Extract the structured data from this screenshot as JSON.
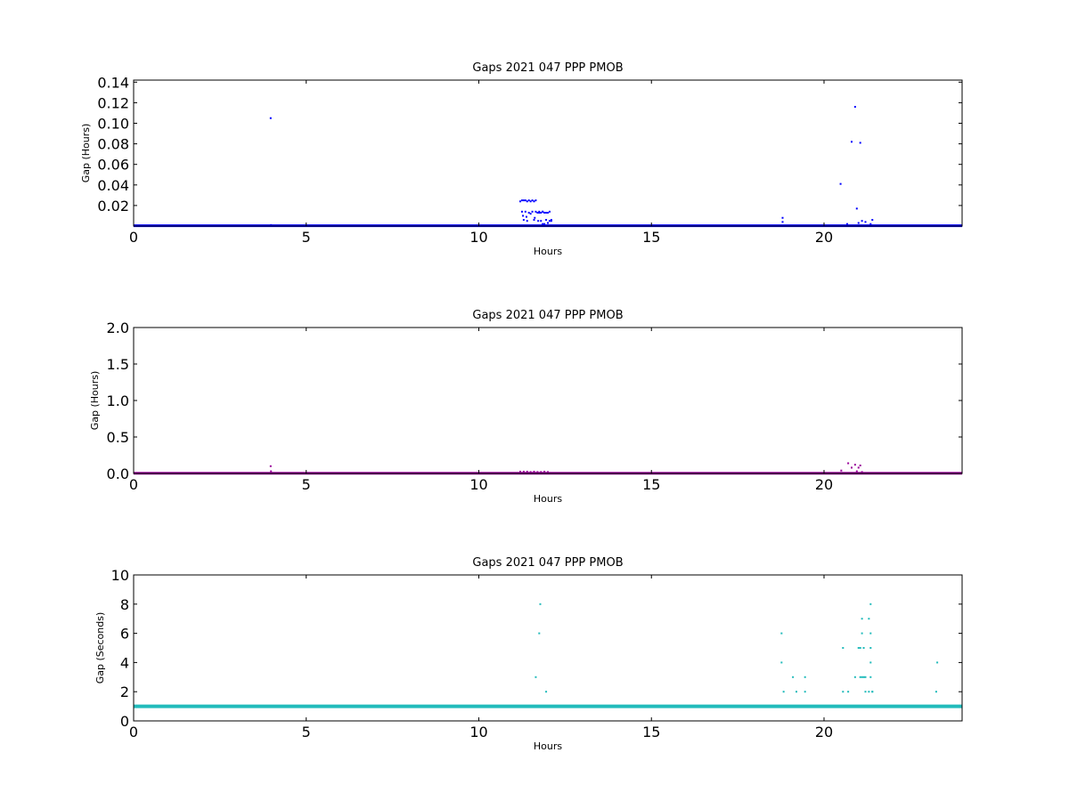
{
  "chart_data": [
    {
      "type": "scatter",
      "title": "Gaps 2021 047 PPP  PMOB",
      "xlabel": "Hours",
      "ylabel": "Gap (Hours)",
      "xlim": [
        0,
        24
      ],
      "ylim": [
        0,
        0.142
      ],
      "xticks": [
        "0",
        "5",
        "10",
        "15",
        "20"
      ],
      "xtick_values": [
        0,
        5,
        10,
        15,
        20
      ],
      "yticks": [
        "0.02",
        "0.04",
        "0.06",
        "0.08",
        "0.10",
        "0.12",
        "0.14"
      ],
      "ytick_values": [
        0.02,
        0.04,
        0.06,
        0.08,
        0.1,
        0.12,
        0.14
      ],
      "color": "#0000ff",
      "baseline": {
        "y": 0.0003,
        "x_range": [
          0,
          24
        ]
      },
      "series": [
        {
          "x": [
            3.97,
            3.98,
            11.2,
            11.25,
            11.3,
            11.35,
            11.4,
            11.45,
            11.5,
            11.55,
            11.6,
            11.65,
            11.7,
            11.75,
            11.8,
            11.85,
            11.9,
            11.95,
            12.0,
            12.05,
            12.1,
            11.25,
            11.35,
            11.45,
            11.55,
            11.65,
            11.75,
            11.85,
            11.95,
            12.05,
            11.3,
            11.4,
            11.6,
            11.8,
            11.9,
            12.0,
            12.1,
            11.28,
            11.38,
            11.5,
            11.62,
            11.72,
            11.85,
            18.8,
            18.8,
            20.48,
            20.67,
            20.8,
            20.9,
            21.05,
            20.95,
            21.1,
            21.2,
            21.35,
            21.4,
            21.0
          ],
          "y": [
            0.105,
            0.001,
            0.024,
            0.025,
            0.025,
            0.025,
            0.024,
            0.025,
            0.024,
            0.025,
            0.024,
            0.025,
            0.013,
            0.014,
            0.013,
            0.014,
            0.013,
            0.013,
            0.013,
            0.014,
            0.006,
            0.014,
            0.014,
            0.013,
            0.014,
            0.014,
            0.013,
            0.014,
            0.006,
            0.005,
            0.006,
            0.005,
            0.006,
            0.005,
            0.002,
            0.003,
            0.005,
            0.01,
            0.009,
            0.012,
            0.008,
            0.005,
            0.002,
            0.008,
            0.004,
            0.041,
            0.002,
            0.082,
            0.116,
            0.081,
            0.017,
            0.005,
            0.004,
            0.002,
            0.006,
            0.003
          ]
        }
      ]
    },
    {
      "type": "scatter",
      "title": "Gaps 2021 047 PPP  PMOB",
      "xlabel": "Hours",
      "ylabel": "Gap (Hours)",
      "xlim": [
        0,
        24
      ],
      "ylim": [
        0,
        2.0
      ],
      "xticks": [
        "0",
        "5",
        "10",
        "15",
        "20"
      ],
      "xtick_values": [
        0,
        5,
        10,
        15,
        20
      ],
      "yticks": [
        "0.0",
        "0.5",
        "1.0",
        "1.5",
        "2.0"
      ],
      "ytick_values": [
        0,
        0.5,
        1.0,
        1.5,
        2.0
      ],
      "color": "#990099",
      "baseline": {
        "y": 0.003,
        "x_range": [
          0,
          24
        ]
      },
      "series": [
        {
          "x": [
            3.97,
            3.98,
            11.2,
            11.3,
            11.4,
            11.5,
            11.6,
            11.7,
            11.8,
            11.9,
            12.0,
            20.5,
            20.7,
            20.8,
            20.9,
            21.0,
            21.1,
            21.05,
            20.95
          ],
          "y": [
            0.1,
            0.03,
            0.025,
            0.025,
            0.025,
            0.02,
            0.025,
            0.02,
            0.02,
            0.025,
            0.02,
            0.04,
            0.14,
            0.08,
            0.12,
            0.08,
            0.02,
            0.11,
            0.03
          ]
        }
      ]
    },
    {
      "type": "scatter",
      "title": "Gaps 2021 047 PPP  PMOB",
      "xlabel": "Hours",
      "ylabel": "Gap (Seconds)",
      "xlim": [
        0,
        24
      ],
      "ylim": [
        0,
        10
      ],
      "xticks": [
        "0",
        "5",
        "10",
        "15",
        "20"
      ],
      "xtick_values": [
        0,
        5,
        10,
        15,
        20
      ],
      "yticks": [
        "0",
        "2",
        "4",
        "6",
        "8",
        "10"
      ],
      "ytick_values": [
        0,
        2,
        4,
        6,
        8,
        10
      ],
      "color": "#22bbbb",
      "baseline": {
        "y": 1,
        "x_range": [
          0,
          24
        ]
      },
      "series": [
        {
          "x": [
            11.78,
            11.75,
            11.65,
            11.95,
            18.77,
            18.77,
            18.83,
            19.1,
            19.2,
            19.45,
            19.45,
            20.55,
            20.55,
            20.7,
            20.9,
            21.0,
            21.05,
            21.1,
            21.1,
            21.15,
            21.2,
            21.05,
            21.1,
            21.15,
            21.3,
            21.35,
            21.35,
            21.35,
            21.35,
            21.35,
            21.4,
            21.4,
            21.3,
            21.2,
            23.28,
            23.25
          ],
          "y": [
            8,
            6,
            3,
            2,
            6,
            4,
            2,
            3,
            2,
            3,
            2,
            5,
            2,
            2,
            3,
            5,
            5,
            6,
            7,
            5,
            3,
            3,
            3,
            3,
            7,
            8,
            6,
            5,
            4,
            3,
            2,
            2,
            2,
            2,
            4,
            2
          ]
        }
      ]
    }
  ]
}
